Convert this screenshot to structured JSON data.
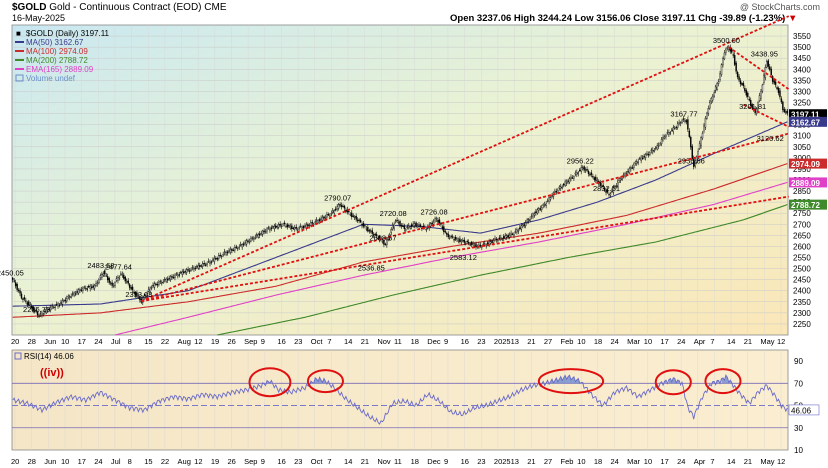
{
  "header": {
    "symbol": "$GOLD",
    "name": "Gold - Continuous Contract (EOD)",
    "exchange": "CME",
    "date": "16-May-2025",
    "watermark": "@ StockCharts.com",
    "ohlc": "Open 3237.06  High 3244.24  Low 3156.06  Close 3197.11  Chg -39.89 (-1.23%)",
    "ohlc_arrow": "▼"
  },
  "legend": [
    {
      "label": "$GOLD (Daily) 3197.11",
      "color": "#000000",
      "kind": "price"
    },
    {
      "label": "MA(50) 3162.67",
      "color": "#3a3a8c",
      "kind": "line"
    },
    {
      "label": "MA(100) 2974.09",
      "color": "#cc2b2b",
      "kind": "line"
    },
    {
      "label": "MA(200) 2788.72",
      "color": "#3f8a2a",
      "kind": "line"
    },
    {
      "label": "EMA(165) 2889.09",
      "color": "#e040c8",
      "kind": "line"
    },
    {
      "label": "Volume undef",
      "color": "#6a8fc8",
      "kind": "box"
    }
  ],
  "rsi_legend": "RSI(14) 46.06",
  "wave_label": "((iv))",
  "colors": {
    "price": "#000000",
    "ma50": "#3a3a8c",
    "ma100": "#cc2b2b",
    "ma200": "#3f8a2a",
    "ema165": "#e040c8",
    "trend": "#e01010",
    "rsi_line": "#6a6ac8",
    "rsi_fill": "#5b7fd0",
    "circle": "#e01010"
  },
  "chart_data": [
    {
      "type": "candlestick",
      "title": "$GOLD Gold - Continuous Contract (EOD) CME",
      "ylim": [
        2200,
        3600
      ],
      "y_ticks": [
        2250,
        2300,
        2350,
        2400,
        2450,
        2500,
        2550,
        2600,
        2650,
        2700,
        2750,
        2800,
        2850,
        2900,
        2950,
        3000,
        3050,
        3100,
        3150,
        3200,
        3250,
        3300,
        3350,
        3400,
        3450,
        3500,
        3550
      ],
      "x_tick_labels": [
        "20",
        "28",
        "Jun",
        "10",
        "17",
        "24",
        "Jul",
        "8",
        "15",
        "22",
        "Aug",
        "12",
        "19",
        "26",
        "Sep",
        "9",
        "16",
        "23",
        "Oct",
        "7",
        "14",
        "21",
        "Nov",
        "11",
        "18",
        "Dec",
        "9",
        "16",
        "23",
        "2025",
        "13",
        "21",
        "27",
        "Feb",
        "10",
        "18",
        "24",
        "Mar",
        "10",
        "17",
        "24",
        "Apr",
        "7",
        "14",
        "21",
        "May",
        "12"
      ],
      "close_anchors": [
        [
          0,
          2450.05
        ],
        [
          6,
          2370
        ],
        [
          12,
          2330
        ],
        [
          18,
          2286.73
        ],
        [
          25,
          2320
        ],
        [
          32,
          2340
        ],
        [
          40,
          2380
        ],
        [
          48,
          2410
        ],
        [
          56,
          2420
        ],
        [
          62,
          2483.68
        ],
        [
          68,
          2420
        ],
        [
          74,
          2477.64
        ],
        [
          82,
          2400
        ],
        [
          88,
          2353.08
        ],
        [
          95,
          2420
        ],
        [
          105,
          2450
        ],
        [
          115,
          2480
        ],
        [
          125,
          2505
        ],
        [
          135,
          2530
        ],
        [
          145,
          2570
        ],
        [
          155,
          2600
        ],
        [
          165,
          2640
        ],
        [
          175,
          2680
        ],
        [
          185,
          2700
        ],
        [
          193,
          2680
        ],
        [
          200,
          2690
        ],
        [
          210,
          2720
        ],
        [
          218,
          2750
        ],
        [
          224,
          2790.07
        ],
        [
          230,
          2750
        ],
        [
          236,
          2720
        ],
        [
          242,
          2680
        ],
        [
          250,
          2640
        ],
        [
          255,
          2608.67
        ],
        [
          258,
          2660
        ],
        [
          262,
          2720.08
        ],
        [
          268,
          2680
        ],
        [
          275,
          2700
        ],
        [
          283,
          2680
        ],
        [
          290,
          2726.08
        ],
        [
          297,
          2650
        ],
        [
          304,
          2630
        ],
        [
          310,
          2620
        ],
        [
          318,
          2600
        ],
        [
          324,
          2610
        ],
        [
          330,
          2630
        ],
        [
          336,
          2640
        ],
        [
          343,
          2660
        ],
        [
          350,
          2700
        ],
        [
          357,
          2750
        ],
        [
          364,
          2790
        ],
        [
          370,
          2840
        ],
        [
          377,
          2880
        ],
        [
          384,
          2920
        ],
        [
          390,
          2956.22
        ],
        [
          396,
          2920
        ],
        [
          402,
          2880
        ],
        [
          408,
          2832.51
        ],
        [
          415,
          2900
        ],
        [
          421,
          2940
        ],
        [
          428,
          2990
        ],
        [
          435,
          3020
        ],
        [
          441,
          3050
        ],
        [
          446,
          3100
        ],
        [
          452,
          3130
        ],
        [
          458,
          3170
        ],
        [
          461,
          3167.77
        ],
        [
          464,
          3050
        ],
        [
          466,
          2956.66
        ],
        [
          470,
          3060
        ],
        [
          476,
          3230
        ],
        [
          483,
          3350
        ],
        [
          487,
          3480
        ],
        [
          490,
          3500
        ],
        [
          493,
          3460
        ],
        [
          496,
          3360
        ],
        [
          500,
          3320
        ],
        [
          505,
          3240
        ],
        [
          508,
          3201.81
        ],
        [
          512,
          3300
        ],
        [
          516,
          3438.95
        ],
        [
          520,
          3350
        ],
        [
          524,
          3300
        ],
        [
          527,
          3220
        ],
        [
          530,
          3197.11
        ]
      ],
      "bar_count": 531,
      "price_labels": [
        {
          "text": "2450.05",
          "at": 0,
          "value": 2450.05
        },
        {
          "text": "2286.73",
          "at": 18,
          "value": 2286.73
        },
        {
          "text": "2483.68",
          "at": 62,
          "value": 2483.68
        },
        {
          "text": "2477.64",
          "at": 74,
          "value": 2477.64
        },
        {
          "text": "2353.08",
          "at": 88,
          "value": 2353.08
        },
        {
          "text": "2790.07",
          "at": 224,
          "value": 2790.07
        },
        {
          "text": "2608.67",
          "at": 255,
          "value": 2608.67
        },
        {
          "text": "2536.85",
          "at": 247,
          "value": 2536.85
        },
        {
          "text": "2720.08",
          "at": 262,
          "value": 2720.08
        },
        {
          "text": "2726.08",
          "at": 290,
          "value": 2726.08
        },
        {
          "text": "2583.12",
          "at": 310,
          "value": 2583.12
        },
        {
          "text": "2956.22",
          "at": 390,
          "value": 2956.22
        },
        {
          "text": "2832.51",
          "at": 408,
          "value": 2832.51
        },
        {
          "text": "3167.77",
          "at": 461,
          "value": 3167.77
        },
        {
          "text": "2956.66",
          "at": 466,
          "value": 2956.66
        },
        {
          "text": "3500.00",
          "at": 490,
          "value": 3500.0
        },
        {
          "text": "3201.81",
          "at": 508,
          "value": 3201.81
        },
        {
          "text": "3438.95",
          "at": 516,
          "value": 3438.95
        },
        {
          "text": "3120.62",
          "at": 520,
          "value": 3120.62
        }
      ],
      "series": [
        {
          "name": "MA(50)",
          "last": 3162.67,
          "anchors": [
            [
              0,
              2330
            ],
            [
              60,
              2340
            ],
            [
              120,
              2400
            ],
            [
              180,
              2550
            ],
            [
              240,
              2700
            ],
            [
              280,
              2690
            ],
            [
              320,
              2660
            ],
            [
              360,
              2720
            ],
            [
              400,
              2800
            ],
            [
              440,
              2900
            ],
            [
              480,
              3020
            ],
            [
              530,
              3162.67
            ]
          ]
        },
        {
          "name": "MA(100)",
          "last": 2974.09,
          "anchors": [
            [
              0,
              2280
            ],
            [
              60,
              2300
            ],
            [
              120,
              2350
            ],
            [
              180,
              2420
            ],
            [
              240,
              2530
            ],
            [
              300,
              2600
            ],
            [
              360,
              2660
            ],
            [
              420,
              2740
            ],
            [
              480,
              2860
            ],
            [
              530,
              2974.09
            ]
          ]
        },
        {
          "name": "MA(200)",
          "last": 2788.72,
          "anchors": [
            [
              140,
              2200
            ],
            [
              200,
              2280
            ],
            [
              260,
              2380
            ],
            [
              320,
              2470
            ],
            [
              380,
              2550
            ],
            [
              440,
              2620
            ],
            [
              500,
              2720
            ],
            [
              530,
              2788.72
            ]
          ]
        },
        {
          "name": "EMA(165)",
          "last": 2889.09,
          "anchors": [
            [
              70,
              2200
            ],
            [
              120,
              2280
            ],
            [
              180,
              2380
            ],
            [
              240,
              2470
            ],
            [
              300,
              2550
            ],
            [
              360,
              2620
            ],
            [
              420,
              2700
            ],
            [
              480,
              2790
            ],
            [
              530,
              2889.09
            ]
          ]
        }
      ],
      "right_axis_labels": [
        {
          "text": "3197.11",
          "value": 3197.11,
          "bg": "#000000",
          "fg": "#ffffff"
        },
        {
          "text": "3162.67",
          "value": 3162.67,
          "bg": "#3a3a8c",
          "fg": "#ffffff"
        },
        {
          "text": "2974.09",
          "value": 2974.09,
          "bg": "#cc2b2b",
          "fg": "#ffffff"
        },
        {
          "text": "2889.09",
          "value": 2889.09,
          "bg": "#e040c8",
          "fg": "#ffffff"
        },
        {
          "text": "2788.72",
          "value": 2788.72,
          "bg": "#3f8a2a",
          "fg": "#ffffff"
        }
      ],
      "trendlines": [
        {
          "from": [
            88,
            2353.08
          ],
          "to": [
            531,
            3640
          ]
        },
        {
          "from": [
            88,
            2353.08
          ],
          "to": [
            531,
            3110
          ]
        },
        {
          "from": [
            88,
            2353.08
          ],
          "to": [
            531,
            2825
          ]
        },
        {
          "from": [
            490,
            3500
          ],
          "to": [
            531,
            3310
          ]
        },
        {
          "from": [
            500,
            3240
          ],
          "to": [
            531,
            3140
          ]
        }
      ]
    },
    {
      "type": "line",
      "title": "RSI(14) 46.06",
      "ylim": [
        10,
        100
      ],
      "y_ticks": [
        90,
        70,
        50,
        30,
        10
      ],
      "ref_lines": [
        70,
        50,
        30
      ],
      "last": 46.06,
      "anchors": [
        [
          0,
          55
        ],
        [
          10,
          52
        ],
        [
          20,
          46
        ],
        [
          30,
          53
        ],
        [
          40,
          58
        ],
        [
          50,
          55
        ],
        [
          60,
          62
        ],
        [
          70,
          55
        ],
        [
          80,
          48
        ],
        [
          90,
          46
        ],
        [
          100,
          54
        ],
        [
          110,
          58
        ],
        [
          120,
          56
        ],
        [
          130,
          60
        ],
        [
          140,
          58
        ],
        [
          150,
          62
        ],
        [
          160,
          64
        ],
        [
          170,
          68
        ],
        [
          176,
          72
        ],
        [
          182,
          64
        ],
        [
          190,
          62
        ],
        [
          200,
          66
        ],
        [
          208,
          74
        ],
        [
          214,
          72
        ],
        [
          220,
          66
        ],
        [
          228,
          56
        ],
        [
          236,
          48
        ],
        [
          244,
          40
        ],
        [
          252,
          34
        ],
        [
          260,
          52
        ],
        [
          268,
          54
        ],
        [
          276,
          50
        ],
        [
          284,
          60
        ],
        [
          292,
          54
        ],
        [
          300,
          44
        ],
        [
          308,
          42
        ],
        [
          316,
          48
        ],
        [
          324,
          50
        ],
        [
          332,
          54
        ],
        [
          340,
          58
        ],
        [
          348,
          64
        ],
        [
          356,
          68
        ],
        [
          364,
          70
        ],
        [
          372,
          73
        ],
        [
          380,
          76
        ],
        [
          388,
          72
        ],
        [
          396,
          60
        ],
        [
          404,
          50
        ],
        [
          412,
          62
        ],
        [
          420,
          66
        ],
        [
          428,
          58
        ],
        [
          436,
          64
        ],
        [
          444,
          70
        ],
        [
          452,
          74
        ],
        [
          458,
          70
        ],
        [
          462,
          48
        ],
        [
          466,
          40
        ],
        [
          472,
          58
        ],
        [
          478,
          70
        ],
        [
          484,
          72
        ],
        [
          488,
          76
        ],
        [
          492,
          70
        ],
        [
          498,
          60
        ],
        [
          504,
          52
        ],
        [
          510,
          62
        ],
        [
          516,
          68
        ],
        [
          522,
          58
        ],
        [
          526,
          50
        ],
        [
          530,
          46.06
        ]
      ],
      "circles": [
        {
          "center": [
            176,
            71
          ],
          "rx_bars": 14,
          "ry": 14
        },
        {
          "center": [
            214,
            72
          ],
          "rx_bars": 12,
          "ry": 11
        },
        {
          "center": [
            382,
            72
          ],
          "rx_bars": 22,
          "ry": 12
        },
        {
          "center": [
            452,
            71
          ],
          "rx_bars": 12,
          "ry": 12
        },
        {
          "center": [
            486,
            72
          ],
          "rx_bars": 12,
          "ry": 12
        }
      ]
    }
  ]
}
